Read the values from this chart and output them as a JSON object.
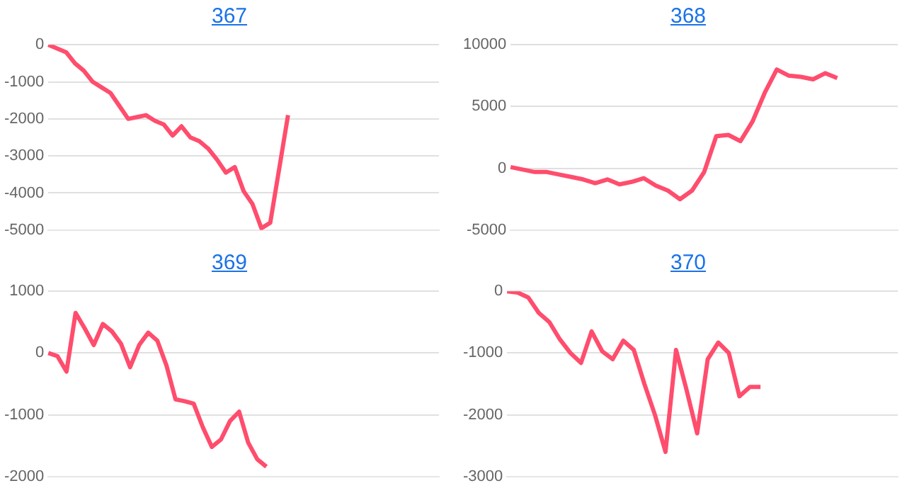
{
  "chart_data": [
    {
      "type": "line",
      "title": "367",
      "color": "#ff4d6d",
      "grid": "y",
      "tick_labels": "y",
      "ylim": [
        -5000,
        0
      ],
      "yticks": [
        -5000,
        -4000,
        -3000,
        -2000,
        -1000,
        0
      ],
      "categories": [
        null,
        null,
        null,
        null,
        null,
        null,
        null,
        null,
        null,
        null,
        null,
        null,
        null,
        null,
        null,
        null,
        null,
        null,
        null,
        null,
        null,
        null,
        null,
        null,
        null,
        null,
        null,
        null,
        null,
        null,
        null,
        null,
        null,
        null,
        null,
        null,
        null,
        null,
        null,
        null,
        null,
        null,
        null,
        null,
        null
      ],
      "values": [
        0,
        -100,
        -200,
        -500,
        -700,
        -1000,
        -1150,
        -1300,
        -1650,
        -2000,
        -1950,
        -1900,
        -2050,
        -2150,
        -2450,
        -2200,
        -2500,
        -2600,
        -2800,
        -3100,
        -3450,
        -3300,
        -3950,
        -4300,
        -4950,
        -4800,
        -3350,
        -1900,
        null,
        null,
        null,
        null,
        null,
        null,
        null,
        null,
        null,
        null,
        null,
        null,
        null,
        null,
        null,
        null,
        null
      ]
    },
    {
      "type": "line",
      "title": "368",
      "color": "#ff4d6d",
      "grid": "y",
      "tick_labels": "y",
      "ylim": [
        -5000,
        10000
      ],
      "yticks": [
        -5000,
        0,
        5000,
        10000
      ],
      "categories": [
        null,
        null,
        null,
        null,
        null,
        null,
        null,
        null,
        null,
        null,
        null,
        null,
        null,
        null,
        null,
        null,
        null,
        null,
        null,
        null,
        null,
        null,
        null,
        null,
        null,
        null,
        null,
        null,
        null,
        null,
        null,
        null,
        null
      ],
      "values": [
        100,
        -100,
        -300,
        -300,
        -500,
        -700,
        -900,
        -1200,
        -900,
        -1300,
        -1100,
        -800,
        -1400,
        -1800,
        -2500,
        -1800,
        -300,
        2600,
        2700,
        2200,
        3800,
        6100,
        8000,
        7500,
        7400,
        7200,
        7700,
        7300,
        null,
        null,
        null,
        null,
        null
      ]
    },
    {
      "type": "line",
      "title": "369",
      "color": "#ff4d6d",
      "grid": "y",
      "tick_labels": "y",
      "ylim": [
        -2000,
        1000
      ],
      "yticks": [
        -2000,
        -1000,
        0,
        1000
      ],
      "categories": [
        null,
        null,
        null,
        null,
        null,
        null,
        null,
        null,
        null,
        null,
        null,
        null,
        null,
        null,
        null,
        null,
        null,
        null,
        null,
        null,
        null,
        null,
        null,
        null,
        null,
        null,
        null,
        null,
        null,
        null,
        null,
        null,
        null,
        null,
        null,
        null,
        null,
        null,
        null,
        null,
        null,
        null,
        null,
        null
      ],
      "values": [
        0,
        -50,
        -300,
        650,
        400,
        130,
        470,
        350,
        150,
        -230,
        130,
        330,
        200,
        -200,
        -750,
        -780,
        -820,
        -1200,
        -1520,
        -1400,
        -1100,
        -950,
        -1450,
        -1720,
        -1840,
        null,
        null,
        null,
        null,
        null,
        null,
        null,
        null,
        null,
        null,
        null,
        null,
        null,
        null,
        null,
        null,
        null,
        null,
        null
      ]
    },
    {
      "type": "line",
      "title": "370",
      "color": "#ff4d6d",
      "grid": "y",
      "tick_labels": "y",
      "ylim": [
        -3000,
        0
      ],
      "yticks": [
        -3000,
        -2000,
        -1000,
        0
      ],
      "categories": [
        null,
        null,
        null,
        null,
        null,
        null,
        null,
        null,
        null,
        null,
        null,
        null,
        null,
        null,
        null,
        null,
        null,
        null,
        null,
        null,
        null,
        null,
        null,
        null,
        null,
        null,
        null,
        null,
        null,
        null,
        null,
        null,
        null,
        null,
        null,
        null,
        null,
        null
      ],
      "values": [
        0,
        -20,
        -100,
        -350,
        -500,
        -780,
        -1000,
        -1160,
        -650,
        -970,
        -1100,
        -800,
        -950,
        -1500,
        -2000,
        -2600,
        -950,
        -1600,
        -2300,
        -1100,
        -830,
        -1000,
        -1700,
        -1550,
        -1550,
        null,
        null,
        null,
        null,
        null,
        null,
        null,
        null,
        null,
        null,
        null,
        null,
        null
      ]
    }
  ]
}
